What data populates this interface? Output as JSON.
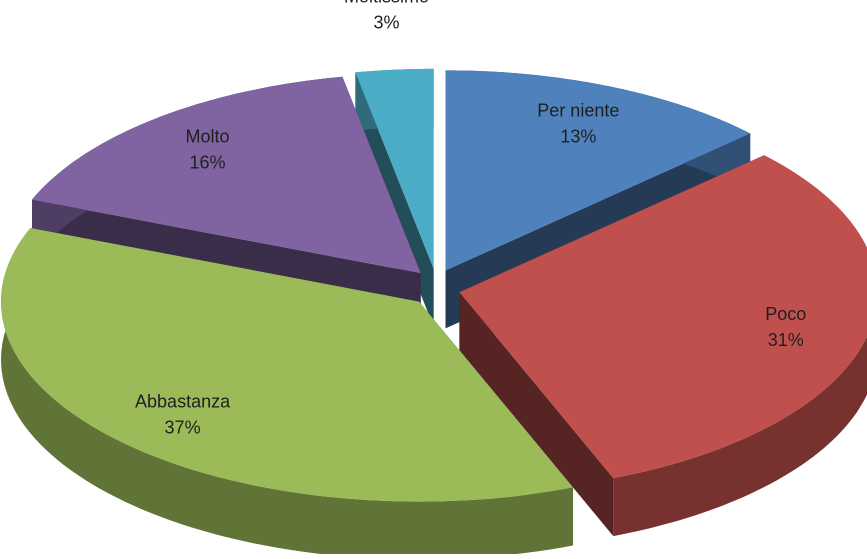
{
  "chart_data": {
    "type": "pie3d",
    "categories": [
      "Per niente",
      "Poco",
      "Abbastanza",
      "Molto",
      "Moltissimo"
    ],
    "values": [
      13,
      31,
      37,
      16,
      3
    ],
    "value_labels": [
      "13%",
      "31%",
      "37%",
      "16%",
      "3%"
    ],
    "colors": [
      "#4f81bd",
      "#c0504d",
      "#9bbb59",
      "#8064a2",
      "#4bacc6"
    ]
  }
}
